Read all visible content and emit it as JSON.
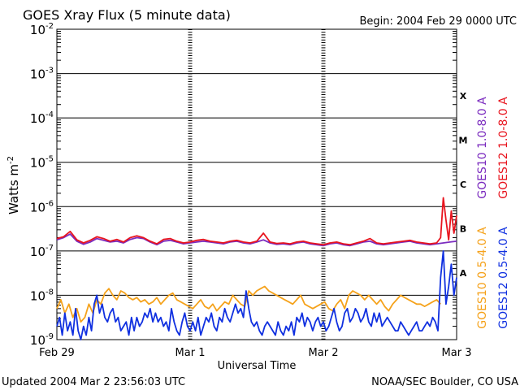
{
  "chart_data": {
    "type": "line",
    "title": "GOES Xray Flux (5 minute data)",
    "begin_label": "Begin:  2004 Feb 29 0000 UTC",
    "xlabel": "Universal Time",
    "ylabel": "Watts m",
    "ylabel_exp": "-2",
    "yscale": "log",
    "ylim_exp": [
      -9,
      -2
    ],
    "x_unit": "days since start (Feb 29 00:00 UTC)",
    "xlim": [
      0,
      3
    ],
    "x_ticks": [
      {
        "x": 0,
        "label": "Feb 29"
      },
      {
        "x": 1,
        "label": "Mar 1"
      },
      {
        "x": 2,
        "label": "Mar 2"
      },
      {
        "x": 3,
        "label": "Mar 3"
      }
    ],
    "y_ticks": [
      {
        "exp": -2,
        "base": "10",
        "sup": "-2"
      },
      {
        "exp": -3,
        "base": "10",
        "sup": "-3"
      },
      {
        "exp": -4,
        "base": "10",
        "sup": "-4"
      },
      {
        "exp": -5,
        "base": "10",
        "sup": "-5"
      },
      {
        "exp": -6,
        "base": "10",
        "sup": "-6"
      },
      {
        "exp": -7,
        "base": "10",
        "sup": "-7"
      },
      {
        "exp": -8,
        "base": "10",
        "sup": "-8"
      },
      {
        "exp": -9,
        "base": "10",
        "sup": "-9"
      }
    ],
    "flare_classes": [
      {
        "label": "X",
        "exp": -3.5
      },
      {
        "label": "M",
        "exp": -4.5
      },
      {
        "label": "C",
        "exp": -5.5
      },
      {
        "label": "B",
        "exp": -6.5
      },
      {
        "label": "A",
        "exp": -7.5
      }
    ],
    "colors": {
      "goes10_long": "#7b2cbf",
      "goes12_long": "#e8141e",
      "goes10_short": "#f5a21b",
      "goes12_short": "#1030e0"
    },
    "series": [
      {
        "name": "GOES10 1.0-8.0 A",
        "color_key": "goes10_long",
        "x": [
          0.0,
          0.05,
          0.1,
          0.15,
          0.2,
          0.25,
          0.3,
          0.35,
          0.4,
          0.45,
          0.5,
          0.55,
          0.6,
          0.65,
          0.7,
          0.75,
          0.8,
          0.85,
          0.9,
          0.95,
          1.0,
          1.05,
          1.1,
          1.15,
          1.2,
          1.25,
          1.3,
          1.35,
          1.4,
          1.45,
          1.5,
          1.55,
          1.6,
          1.65,
          1.7,
          1.75,
          1.8,
          1.85,
          1.9,
          1.95,
          2.0,
          2.05,
          2.1,
          2.15,
          2.2,
          2.25,
          2.3,
          2.35,
          2.4,
          2.45,
          2.5,
          2.55,
          2.6,
          2.65,
          2.7,
          2.75,
          2.8,
          2.85,
          2.9,
          2.95,
          3.0
        ],
        "log_y": [
          -6.75,
          -6.7,
          -6.62,
          -6.78,
          -6.85,
          -6.8,
          -6.72,
          -6.76,
          -6.8,
          -6.78,
          -6.82,
          -6.74,
          -6.7,
          -6.72,
          -6.8,
          -6.86,
          -6.78,
          -6.76,
          -6.8,
          -6.84,
          -6.82,
          -6.8,
          -6.78,
          -6.8,
          -6.82,
          -6.84,
          -6.8,
          -6.78,
          -6.82,
          -6.84,
          -6.8,
          -6.75,
          -6.82,
          -6.85,
          -6.84,
          -6.86,
          -6.82,
          -6.8,
          -6.84,
          -6.86,
          -6.88,
          -6.84,
          -6.82,
          -6.86,
          -6.88,
          -6.84,
          -6.8,
          -6.78,
          -6.84,
          -6.86,
          -6.84,
          -6.82,
          -6.8,
          -6.78,
          -6.82,
          -6.84,
          -6.86,
          -6.84,
          -6.82,
          -6.8,
          -6.78
        ]
      },
      {
        "name": "GOES12 1.0-8.0 A",
        "color_key": "goes12_long",
        "x": [
          0.0,
          0.05,
          0.1,
          0.15,
          0.2,
          0.25,
          0.3,
          0.35,
          0.4,
          0.45,
          0.5,
          0.55,
          0.6,
          0.65,
          0.7,
          0.75,
          0.8,
          0.85,
          0.9,
          0.95,
          1.0,
          1.05,
          1.1,
          1.15,
          1.2,
          1.25,
          1.3,
          1.35,
          1.4,
          1.45,
          1.5,
          1.55,
          1.6,
          1.65,
          1.7,
          1.75,
          1.8,
          1.85,
          1.9,
          1.95,
          2.0,
          2.05,
          2.1,
          2.15,
          2.2,
          2.25,
          2.3,
          2.35,
          2.4,
          2.45,
          2.5,
          2.55,
          2.6,
          2.65,
          2.7,
          2.75,
          2.8,
          2.85,
          2.88,
          2.9,
          2.92,
          2.94,
          2.96,
          2.98,
          3.0
        ],
        "log_y": [
          -6.72,
          -6.68,
          -6.56,
          -6.75,
          -6.82,
          -6.76,
          -6.68,
          -6.72,
          -6.78,
          -6.74,
          -6.8,
          -6.7,
          -6.66,
          -6.7,
          -6.78,
          -6.84,
          -6.74,
          -6.72,
          -6.78,
          -6.82,
          -6.8,
          -6.76,
          -6.74,
          -6.78,
          -6.8,
          -6.82,
          -6.78,
          -6.76,
          -6.8,
          -6.82,
          -6.78,
          -6.6,
          -6.8,
          -6.83,
          -6.82,
          -6.84,
          -6.8,
          -6.78,
          -6.82,
          -6.84,
          -6.86,
          -6.82,
          -6.8,
          -6.84,
          -6.86,
          -6.82,
          -6.78,
          -6.72,
          -6.82,
          -6.84,
          -6.82,
          -6.8,
          -6.78,
          -6.76,
          -6.8,
          -6.82,
          -6.84,
          -6.82,
          -6.7,
          -5.8,
          -6.3,
          -6.75,
          -6.1,
          -6.6,
          -6.2
        ]
      },
      {
        "name": "GOES10 0.5-4.0 A",
        "color_key": "goes10_short",
        "x": [
          0.0,
          0.03,
          0.06,
          0.09,
          0.12,
          0.15,
          0.18,
          0.21,
          0.24,
          0.27,
          0.3,
          0.33,
          0.36,
          0.39,
          0.42,
          0.45,
          0.48,
          0.51,
          0.54,
          0.57,
          0.6,
          0.63,
          0.66,
          0.69,
          0.72,
          0.75,
          0.78,
          0.81,
          0.84,
          0.87,
          0.9,
          0.93,
          0.96,
          0.99,
          1.02,
          1.05,
          1.08,
          1.11,
          1.14,
          1.17,
          1.2,
          1.23,
          1.26,
          1.29,
          1.32,
          1.35,
          1.38,
          1.41,
          1.44,
          1.47,
          1.5,
          1.53,
          1.56,
          1.59,
          1.62,
          1.65,
          1.68,
          1.71,
          1.74,
          1.77,
          1.8,
          1.83,
          1.86,
          1.89,
          1.92,
          1.95,
          1.98,
          2.01,
          2.04,
          2.07,
          2.1,
          2.13,
          2.16,
          2.19,
          2.22,
          2.25,
          2.28,
          2.31,
          2.34,
          2.37,
          2.4,
          2.43,
          2.46,
          2.49,
          2.52,
          2.55,
          2.58,
          2.61,
          2.64,
          2.67,
          2.7,
          2.73,
          2.76,
          2.79,
          2.82,
          2.85,
          2.88
        ],
        "log_y": [
          -8.3,
          -8.1,
          -8.4,
          -8.2,
          -8.5,
          -8.3,
          -8.6,
          -8.5,
          -8.2,
          -8.4,
          -8.1,
          -8.2,
          -7.95,
          -7.85,
          -8.0,
          -8.1,
          -7.9,
          -7.95,
          -8.05,
          -8.1,
          -8.05,
          -8.15,
          -8.1,
          -8.2,
          -8.15,
          -8.05,
          -8.2,
          -8.1,
          -8.0,
          -7.95,
          -8.1,
          -8.15,
          -8.2,
          -8.25,
          -8.3,
          -8.2,
          -8.1,
          -8.25,
          -8.3,
          -8.2,
          -8.35,
          -8.25,
          -8.15,
          -8.2,
          -8.0,
          -8.1,
          -8.2,
          -8.25,
          -7.9,
          -8.0,
          -7.9,
          -7.85,
          -7.8,
          -7.9,
          -7.95,
          -8.0,
          -8.05,
          -8.1,
          -8.15,
          -8.2,
          -8.1,
          -8.0,
          -8.2,
          -8.25,
          -8.3,
          -8.25,
          -8.2,
          -8.15,
          -8.3,
          -8.35,
          -8.2,
          -8.1,
          -8.3,
          -8.0,
          -7.9,
          -7.95,
          -8.0,
          -8.1,
          -8.0,
          -8.1,
          -8.2,
          -8.1,
          -8.25,
          -8.35,
          -8.2,
          -8.1,
          -8.0,
          -8.05,
          -8.1,
          -8.15,
          -8.2,
          -8.2,
          -8.25,
          -8.2,
          -8.15,
          -8.1,
          -8.2
        ]
      },
      {
        "name": "GOES12 0.5-4.0 A",
        "color_key": "goes12_short",
        "x": [
          0.0,
          0.02,
          0.04,
          0.06,
          0.08,
          0.1,
          0.12,
          0.14,
          0.16,
          0.18,
          0.2,
          0.22,
          0.24,
          0.26,
          0.28,
          0.3,
          0.32,
          0.34,
          0.36,
          0.38,
          0.4,
          0.42,
          0.44,
          0.46,
          0.48,
          0.5,
          0.52,
          0.54,
          0.56,
          0.58,
          0.6,
          0.62,
          0.64,
          0.66,
          0.68,
          0.7,
          0.72,
          0.74,
          0.76,
          0.78,
          0.8,
          0.82,
          0.84,
          0.86,
          0.88,
          0.9,
          0.92,
          0.94,
          0.96,
          0.98,
          1.0,
          1.02,
          1.04,
          1.06,
          1.08,
          1.1,
          1.12,
          1.14,
          1.16,
          1.18,
          1.2,
          1.22,
          1.24,
          1.26,
          1.28,
          1.3,
          1.32,
          1.34,
          1.36,
          1.38,
          1.4,
          1.42,
          1.44,
          1.46,
          1.48,
          1.5,
          1.52,
          1.54,
          1.56,
          1.58,
          1.6,
          1.62,
          1.64,
          1.66,
          1.68,
          1.7,
          1.72,
          1.74,
          1.76,
          1.78,
          1.8,
          1.82,
          1.84,
          1.86,
          1.88,
          1.9,
          1.92,
          1.94,
          1.96,
          1.98,
          2.0,
          2.02,
          2.04,
          2.06,
          2.08,
          2.1,
          2.12,
          2.14,
          2.16,
          2.18,
          2.2,
          2.22,
          2.24,
          2.26,
          2.28,
          2.3,
          2.32,
          2.34,
          2.36,
          2.38,
          2.4,
          2.42,
          2.44,
          2.46,
          2.48,
          2.5,
          2.52,
          2.54,
          2.56,
          2.58,
          2.6,
          2.62,
          2.64,
          2.66,
          2.68,
          2.7,
          2.72,
          2.74,
          2.76,
          2.78,
          2.8,
          2.82,
          2.84,
          2.86,
          2.88,
          2.9,
          2.92,
          2.94,
          2.96,
          2.98,
          3.0
        ],
        "log_y": [
          -8.7,
          -8.5,
          -8.9,
          -8.4,
          -8.8,
          -8.6,
          -8.9,
          -8.3,
          -8.8,
          -9.0,
          -8.7,
          -8.9,
          -8.5,
          -8.8,
          -8.2,
          -8.0,
          -8.4,
          -8.2,
          -8.5,
          -8.6,
          -8.4,
          -8.3,
          -8.6,
          -8.5,
          -8.8,
          -8.7,
          -8.6,
          -8.9,
          -8.5,
          -8.8,
          -8.5,
          -8.7,
          -8.6,
          -8.4,
          -8.5,
          -8.3,
          -8.6,
          -8.4,
          -8.6,
          -8.5,
          -8.7,
          -8.6,
          -8.8,
          -8.3,
          -8.6,
          -8.8,
          -8.9,
          -8.6,
          -8.4,
          -8.7,
          -8.8,
          -8.6,
          -8.8,
          -8.5,
          -8.9,
          -8.7,
          -8.5,
          -8.6,
          -8.4,
          -8.7,
          -8.8,
          -8.5,
          -8.6,
          -8.3,
          -8.5,
          -8.6,
          -8.4,
          -8.2,
          -8.4,
          -8.3,
          -8.5,
          -7.9,
          -8.3,
          -8.6,
          -8.7,
          -8.6,
          -8.8,
          -8.9,
          -8.7,
          -8.6,
          -8.7,
          -8.8,
          -8.9,
          -8.6,
          -8.8,
          -8.9,
          -8.7,
          -8.8,
          -8.6,
          -8.9,
          -8.5,
          -8.6,
          -8.4,
          -8.7,
          -8.5,
          -8.6,
          -8.8,
          -8.6,
          -8.5,
          -8.7,
          -8.6,
          -8.8,
          -8.7,
          -8.5,
          -8.3,
          -8.6,
          -8.8,
          -8.7,
          -8.4,
          -8.3,
          -8.6,
          -8.5,
          -8.3,
          -8.4,
          -8.6,
          -8.5,
          -8.3,
          -8.6,
          -8.7,
          -8.4,
          -8.6,
          -8.4,
          -8.7,
          -8.6,
          -8.5,
          -8.6,
          -8.7,
          -8.8,
          -8.8,
          -8.6,
          -8.7,
          -8.8,
          -8.9,
          -8.8,
          -8.7,
          -8.6,
          -8.8,
          -8.8,
          -8.7,
          -8.6,
          -8.7,
          -8.5,
          -8.6,
          -8.8,
          -7.6,
          -7.0,
          -8.2,
          -7.8,
          -7.3,
          -8.0,
          -7.6
        ]
      }
    ]
  },
  "footer": {
    "updated": "Updated 2004 Mar  2 23:56:03 UTC",
    "credit": "NOAA/SEC Boulder, CO USA"
  }
}
